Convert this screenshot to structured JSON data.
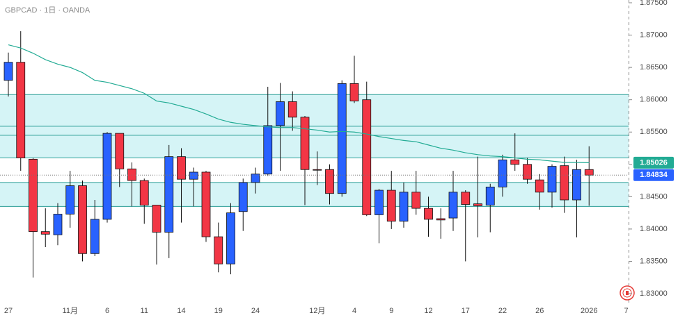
{
  "chart_data": {
    "type": "candlestick",
    "title": "GBPCAD · 1日 · OANDA",
    "categories": [
      "27",
      null,
      null,
      null,
      null,
      "11月",
      null,
      null,
      "6",
      null,
      null,
      "11",
      null,
      null,
      "14",
      null,
      null,
      "19",
      null,
      null,
      "24",
      null,
      null,
      null,
      null,
      "12月",
      null,
      null,
      "4",
      null,
      null,
      "9",
      null,
      null,
      "12",
      null,
      null,
      "17",
      null,
      null,
      "22",
      null,
      null,
      "26",
      null,
      null,
      null,
      "2026",
      null,
      null,
      "7"
    ],
    "open": [
      1.863,
      1.8658,
      1.8508,
      1.8396,
      1.8391,
      1.8423,
      1.8467,
      1.8362,
      1.8415,
      1.8548,
      1.8493,
      1.8475,
      1.8437,
      1.8395,
      1.8512,
      1.8477,
      1.8488,
      1.8388,
      1.8346,
      1.8427,
      1.8472,
      1.8485,
      1.856,
      1.8597,
      1.8573,
      1.8492,
      1.8492,
      1.8455,
      1.8625,
      1.86,
      1.8422,
      1.846,
      1.8412,
      1.8457,
      1.8432,
      1.8416,
      1.8417,
      1.8457,
      1.8439,
      1.8437,
      1.8465,
      1.8507,
      1.85,
      1.8476,
      1.8457,
      1.8498,
      1.8445,
      1.8492,
      null,
      null,
      null
    ],
    "high": [
      1.8673,
      1.8706,
      1.851,
      1.8432,
      1.844,
      1.849,
      1.8475,
      1.8445,
      1.855,
      1.8548,
      1.8503,
      1.8478,
      1.8437,
      1.853,
      1.8525,
      1.8495,
      1.849,
      1.841,
      1.844,
      1.8478,
      1.8495,
      1.862,
      1.8626,
      1.8613,
      1.8575,
      1.852,
      1.85,
      1.863,
      1.8668,
      1.8628,
      1.8462,
      1.849,
      1.8472,
      1.849,
      1.845,
      1.8432,
      1.849,
      1.846,
      1.8512,
      1.847,
      1.8515,
      1.8548,
      1.851,
      1.8485,
      1.85,
      1.8512,
      1.8507,
      1.8528,
      null,
      null,
      null
    ],
    "low": [
      1.8605,
      1.849,
      1.8325,
      1.8372,
      1.8375,
      1.8402,
      1.835,
      1.8358,
      1.841,
      1.8465,
      1.8435,
      1.8408,
      1.8345,
      1.8355,
      1.841,
      1.8435,
      1.838,
      1.8333,
      1.833,
      1.8397,
      1.8455,
      1.8482,
      1.849,
      1.8552,
      1.8437,
      1.8468,
      1.8438,
      1.845,
      1.8595,
      1.842,
      1.8378,
      1.84,
      1.8402,
      1.8422,
      1.8388,
      1.8385,
      1.8397,
      1.835,
      1.8387,
      1.8395,
      1.845,
      1.849,
      1.847,
      1.843,
      1.8433,
      1.8425,
      1.8387,
      1.8436,
      null,
      null,
      null
    ],
    "close": [
      1.8658,
      1.851,
      1.8396,
      1.8392,
      1.8423,
      1.8467,
      1.8362,
      1.8415,
      1.8548,
      1.8493,
      1.8475,
      1.8437,
      1.8395,
      1.8512,
      1.8477,
      1.8488,
      1.8388,
      1.8346,
      1.8425,
      1.8472,
      1.8485,
      1.856,
      1.8597,
      1.8573,
      1.8492,
      1.8491,
      1.8455,
      1.8625,
      1.8598,
      1.8422,
      1.846,
      1.8412,
      1.8457,
      1.8432,
      1.8415,
      1.8414,
      1.8457,
      1.8438,
      1.8436,
      1.8465,
      1.8507,
      1.85,
      1.8477,
      1.8457,
      1.8497,
      1.8445,
      1.8492,
      1.84834,
      null,
      null,
      null
    ],
    "up_color": "#2962ff",
    "down_color": "#f23645",
    "moving_average": {
      "color": "#22ab94",
      "values": [
        1.8685,
        1.868,
        1.8672,
        1.8662,
        1.8655,
        1.865,
        1.8642,
        1.863,
        1.8627,
        1.8622,
        1.8617,
        1.861,
        1.8598,
        1.8595,
        1.859,
        1.8585,
        1.8578,
        1.857,
        1.8565,
        1.8562,
        1.856,
        1.8558,
        1.8557,
        1.8557,
        1.8555,
        1.8553,
        1.855,
        1.8551,
        1.855,
        1.8547,
        1.8543,
        1.854,
        1.8537,
        1.8535,
        1.853,
        1.8525,
        1.8522,
        1.8518,
        1.8515,
        1.8513,
        1.8512,
        1.851,
        1.8508,
        1.8507,
        1.8505,
        1.8503,
        1.8503,
        1.85026,
        null,
        null,
        null
      ]
    },
    "zones": [
      [
        1.8608,
        1.851
      ],
      [
        1.8472,
        1.8435
      ]
    ],
    "levels": [
      1.8559,
      1.8545
    ],
    "zone_color": "#d5f4f6",
    "level_color": "#2a9d96",
    "ylim": [
      1.8285,
      1.87543
    ],
    "yticks": [
      {
        "value": 1.83,
        "label": "1.83000"
      },
      {
        "value": 1.835,
        "label": "1.83500"
      },
      {
        "value": 1.84,
        "label": "1.84000"
      },
      {
        "value": 1.845,
        "label": "1.84500"
      },
      {
        "value": 1.85,
        "label": "1.85000"
      },
      {
        "value": 1.855,
        "label": "1.85500"
      },
      {
        "value": 1.86,
        "label": "1.86000"
      },
      {
        "value": 1.865,
        "label": "1.86500"
      },
      {
        "value": 1.87,
        "label": "1.87000"
      },
      {
        "value": 1.875,
        "label": "1.87500"
      }
    ]
  }
}
